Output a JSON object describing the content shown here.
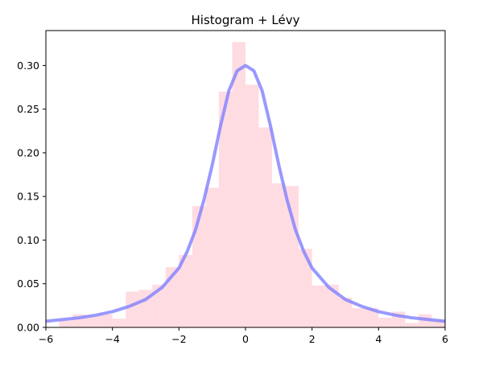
{
  "chart_data": {
    "type": "bar",
    "title": "Histogram + Lévy",
    "xlabel": "",
    "ylabel": "",
    "xlim": [
      -6,
      6
    ],
    "ylim": [
      0,
      0.34
    ],
    "grid": false,
    "x_ticks": [
      "−6",
      "−4",
      "−2",
      "0",
      "2",
      "4",
      "6"
    ],
    "x_tick_values": [
      -6,
      -4,
      -2,
      0,
      2,
      4,
      6
    ],
    "y_ticks": [
      "0.00",
      "0.05",
      "0.10",
      "0.15",
      "0.20",
      "0.25",
      "0.30"
    ],
    "y_tick_values": [
      0,
      0.05,
      0.1,
      0.15,
      0.2,
      0.25,
      0.3
    ],
    "histogram": {
      "bin_width": 0.4,
      "color": "#ffc0cb",
      "opacity": 0.55,
      "bins": [
        {
          "x0": -5.6,
          "height": 0.008
        },
        {
          "x0": -5.2,
          "height": 0.015
        },
        {
          "x0": -4.8,
          "height": 0.013
        },
        {
          "x0": -4.4,
          "height": 0.015
        },
        {
          "x0": -4.0,
          "height": 0.01
        },
        {
          "x0": -3.6,
          "height": 0.041
        },
        {
          "x0": -3.2,
          "height": 0.043
        },
        {
          "x0": -2.8,
          "height": 0.049
        },
        {
          "x0": -2.4,
          "height": 0.069
        },
        {
          "x0": -2.0,
          "height": 0.083
        },
        {
          "x0": -1.6,
          "height": 0.139
        },
        {
          "x0": -1.2,
          "height": 0.16
        },
        {
          "x0": -0.8,
          "height": 0.27
        },
        {
          "x0": -0.4,
          "height": 0.327
        },
        {
          "x0": 0.0,
          "height": 0.278
        },
        {
          "x0": 0.4,
          "height": 0.229
        },
        {
          "x0": 0.8,
          "height": 0.165
        },
        {
          "x0": 1.2,
          "height": 0.162
        },
        {
          "x0": 1.6,
          "height": 0.09
        },
        {
          "x0": 2.0,
          "height": 0.048
        },
        {
          "x0": 2.4,
          "height": 0.049
        },
        {
          "x0": 2.8,
          "height": 0.034
        },
        {
          "x0": 3.2,
          "height": 0.022
        },
        {
          "x0": 3.6,
          "height": 0.022
        },
        {
          "x0": 4.0,
          "height": 0.011
        },
        {
          "x0": 4.4,
          "height": 0.018
        },
        {
          "x0": 4.8,
          "height": 0.005
        },
        {
          "x0": 5.2,
          "height": 0.015
        },
        {
          "x0": 5.6,
          "height": 0.008
        }
      ]
    },
    "curve": {
      "type": "line",
      "color": "#7f7fff",
      "opacity": 0.8,
      "x": [
        -6.0,
        -5.5,
        -5.0,
        -4.5,
        -4.0,
        -3.5,
        -3.0,
        -2.5,
        -2.0,
        -1.75,
        -1.5,
        -1.25,
        -1.0,
        -0.75,
        -0.5,
        -0.25,
        0.0,
        0.25,
        0.5,
        0.75,
        1.0,
        1.25,
        1.5,
        1.75,
        2.0,
        2.5,
        3.0,
        3.5,
        4.0,
        4.5,
        5.0,
        5.5,
        6.0
      ],
      "y": [
        0.007,
        0.009,
        0.011,
        0.014,
        0.018,
        0.024,
        0.032,
        0.046,
        0.068,
        0.087,
        0.112,
        0.146,
        0.186,
        0.231,
        0.271,
        0.294,
        0.3,
        0.294,
        0.271,
        0.231,
        0.186,
        0.146,
        0.112,
        0.087,
        0.068,
        0.046,
        0.032,
        0.024,
        0.018,
        0.014,
        0.011,
        0.009,
        0.007
      ]
    }
  }
}
